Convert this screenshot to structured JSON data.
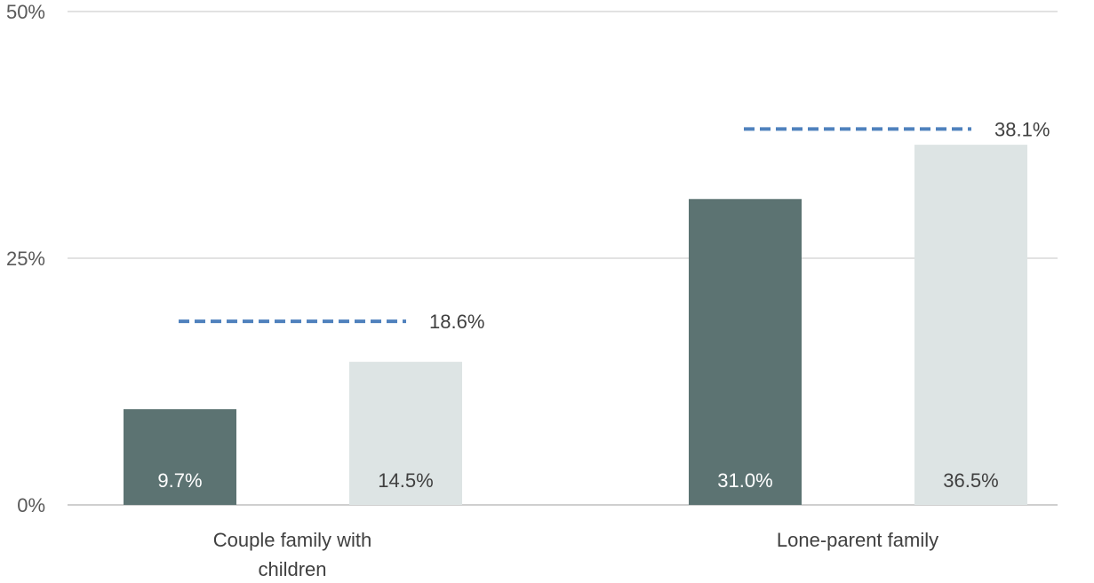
{
  "chart_data": {
    "type": "bar",
    "categories": [
      "Couple family with children",
      "Lone-parent family"
    ],
    "category_lines": [
      [
        "Couple family with",
        "children"
      ],
      [
        "Lone-parent family"
      ]
    ],
    "series": [
      {
        "values": [
          9.7,
          31.0
        ],
        "value_labels": [
          "9.7%",
          "31.0%"
        ],
        "color": "#5c7372",
        "label_color": "#ffffff"
      },
      {
        "values": [
          14.5,
          36.5
        ],
        "value_labels": [
          "14.5%",
          "36.5%"
        ],
        "color": "#dde4e4",
        "label_color": "#404040"
      }
    ],
    "reference_lines": {
      "values": [
        18.6,
        38.1
      ],
      "labels": [
        "18.6%",
        "38.1%"
      ],
      "color": "#4f81bd",
      "style": "dashed"
    },
    "ylim": [
      0,
      50
    ],
    "yticks": [
      0,
      25,
      50
    ],
    "ytick_labels": [
      "0%",
      "25%",
      "50%"
    ],
    "grid": true,
    "legend": "none",
    "title": "",
    "xlabel": "",
    "ylabel": ""
  }
}
